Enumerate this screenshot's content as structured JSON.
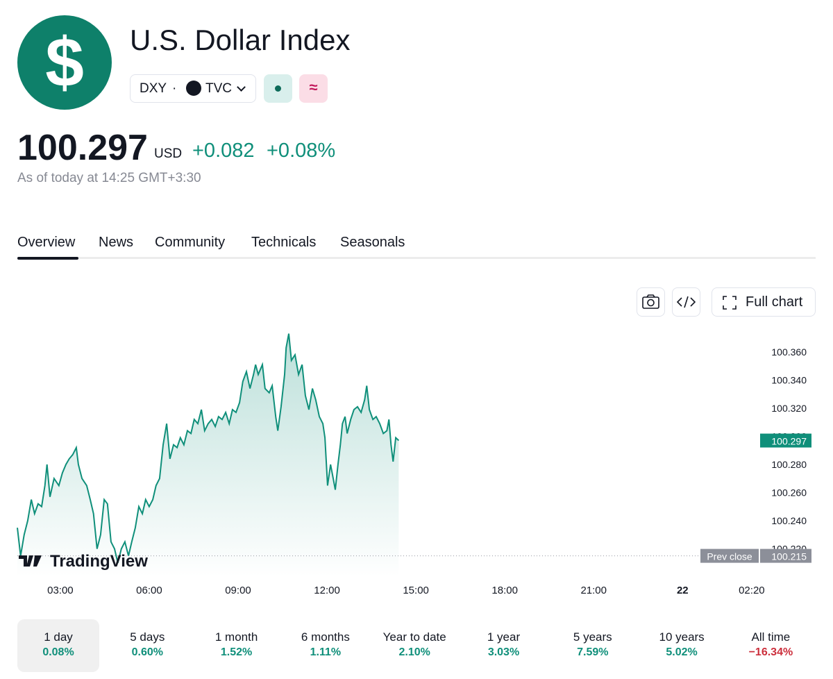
{
  "header": {
    "logo_text": "$",
    "title": "U.S. Dollar Index",
    "symbol": "DXY",
    "separator": "·",
    "exchange": "TVC",
    "badge_text": "≈",
    "price": "100.297",
    "currency": "USD",
    "change": "+0.082",
    "change_pct": "+0.08%",
    "as_of": "As of today at 14:25 GMT+3:30"
  },
  "tabs": [
    "Overview",
    "News",
    "Community",
    "Technicals",
    "Seasonals"
  ],
  "toolbar": {
    "full_chart": "Full chart"
  },
  "chart_data": {
    "type": "line",
    "color": "#0f8f7a",
    "watermark": "TradingView",
    "x": [
      1.55,
      1.66,
      1.78,
      1.9,
      2.02,
      2.13,
      2.25,
      2.37,
      2.48,
      2.55,
      2.65,
      2.79,
      2.95,
      3.07,
      3.19,
      3.3,
      3.42,
      3.54,
      3.61,
      3.73,
      3.89,
      4.01,
      4.12,
      4.24,
      4.36,
      4.48,
      4.59,
      4.71,
      4.83,
      4.94,
      5.06,
      5.18,
      5.3,
      5.41,
      5.53,
      5.65,
      5.77,
      5.88,
      6.0,
      6.12,
      6.23,
      6.35,
      6.47,
      6.59,
      6.7,
      6.82,
      6.94,
      7.05,
      7.17,
      7.29,
      7.41,
      7.52,
      7.64,
      7.76,
      7.87,
      7.99,
      8.11,
      8.23,
      8.34,
      8.46,
      8.58,
      8.7,
      8.81,
      8.93,
      9.05,
      9.16,
      9.28,
      9.4,
      9.52,
      9.59,
      9.68,
      9.82,
      9.91,
      10.05,
      10.15,
      10.27,
      10.34,
      10.45,
      10.57,
      10.62,
      10.71,
      10.8,
      10.92,
      11.04,
      11.16,
      11.27,
      11.39,
      11.51,
      11.62,
      11.74,
      11.86,
      11.93,
      12.02,
      12.12,
      12.21,
      12.28,
      12.37,
      12.45,
      12.52,
      12.61,
      12.68,
      12.8,
      12.91,
      13.03,
      13.15,
      13.27,
      13.34,
      13.43,
      13.55,
      13.66,
      13.78,
      13.9,
      14.02,
      14.09,
      14.16,
      14.23,
      14.32,
      14.42
    ],
    "values": [
      100.235,
      100.215,
      100.23,
      100.24,
      100.255,
      100.245,
      100.252,
      100.25,
      100.265,
      100.28,
      100.257,
      100.27,
      100.265,
      100.274,
      100.28,
      100.284,
      100.287,
      100.292,
      100.28,
      100.27,
      100.265,
      100.255,
      100.245,
      100.22,
      100.23,
      100.255,
      100.252,
      100.225,
      100.22,
      100.21,
      100.22,
      100.225,
      100.215,
      100.225,
      100.235,
      100.25,
      100.245,
      100.255,
      100.25,
      100.255,
      100.265,
      100.27,
      100.294,
      100.309,
      100.284,
      100.294,
      100.292,
      100.299,
      100.294,
      100.304,
      100.302,
      100.312,
      100.309,
      100.319,
      100.304,
      100.309,
      100.312,
      100.307,
      100.314,
      100.312,
      100.317,
      100.309,
      100.319,
      100.317,
      100.324,
      100.339,
      100.346,
      100.334,
      100.344,
      100.351,
      100.344,
      100.351,
      100.334,
      100.331,
      100.336,
      100.314,
      100.304,
      100.321,
      100.344,
      100.363,
      100.373,
      100.354,
      100.358,
      100.344,
      100.351,
      100.329,
      100.319,
      100.334,
      100.326,
      100.314,
      100.309,
      100.299,
      100.265,
      100.28,
      100.27,
      100.262,
      100.28,
      100.294,
      100.309,
      100.314,
      100.302,
      100.312,
      100.319,
      100.321,
      100.317,
      100.326,
      100.336,
      100.319,
      100.312,
      100.314,
      100.309,
      100.302,
      100.304,
      100.312,
      100.294,
      100.282,
      100.299,
      100.297
    ],
    "xlim": [
      1.55,
      26.5
    ],
    "ylim": [
      100.2,
      100.378
    ],
    "xticks": [
      {
        "value": 3,
        "label": "03:00"
      },
      {
        "value": 6,
        "label": "06:00"
      },
      {
        "value": 9,
        "label": "09:00"
      },
      {
        "value": 12,
        "label": "12:00"
      },
      {
        "value": 15,
        "label": "15:00"
      },
      {
        "value": 18,
        "label": "18:00"
      },
      {
        "value": 21,
        "label": "21:00"
      },
      {
        "value": 24,
        "label": "22"
      },
      {
        "value": 26.333,
        "label": "02:20"
      }
    ],
    "yticks": [
      {
        "value": 100.22,
        "label": "100.220"
      },
      {
        "value": 100.24,
        "label": "100.240"
      },
      {
        "value": 100.26,
        "label": "100.260"
      },
      {
        "value": 100.28,
        "label": "100.280"
      },
      {
        "value": 100.3,
        "label": "100.300"
      },
      {
        "value": 100.32,
        "label": "100.320"
      },
      {
        "value": 100.34,
        "label": "100.340"
      },
      {
        "value": 100.36,
        "label": "100.360"
      }
    ],
    "prev_close_label": "Prev close",
    "prev_close": 100.215
  },
  "periods": [
    {
      "label": "1 day",
      "change": "0.08%"
    },
    {
      "label": "5 days",
      "change": "0.60%"
    },
    {
      "label": "1 month",
      "change": "1.52%"
    },
    {
      "label": "6 months",
      "change": "1.11%"
    },
    {
      "label": "Year to date",
      "change": "2.10%"
    },
    {
      "label": "1 year",
      "change": "3.03%"
    },
    {
      "label": "5 years",
      "change": "7.59%"
    },
    {
      "label": "10 years",
      "change": "5.02%"
    },
    {
      "label": "All time",
      "change": "−16.34%"
    }
  ]
}
